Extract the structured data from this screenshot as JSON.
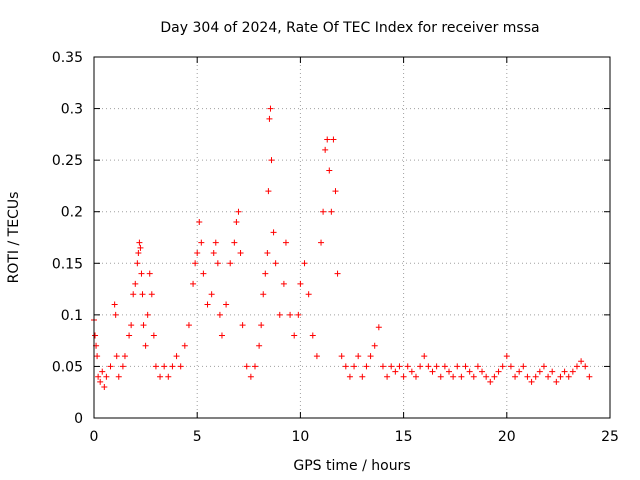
{
  "chart_data": {
    "type": "scatter",
    "title": "Day 304 of 2024, Rate Of TEC Index for receiver mssa",
    "xlabel": "GPS time / hours",
    "ylabel": "ROTI / TECUs",
    "xlim": [
      0,
      25
    ],
    "ylim": [
      0,
      0.35
    ],
    "xticks": [
      0,
      5,
      10,
      15,
      20,
      25
    ],
    "xtick_labels": [
      "0",
      "5",
      "10",
      "15",
      "20",
      "25"
    ],
    "yticks": [
      0,
      0.05,
      0.1,
      0.15,
      0.2,
      0.25,
      0.3,
      0.35
    ],
    "ytick_labels": [
      "0",
      "0.05",
      "0.1",
      "0.15",
      "0.2",
      "0.25",
      "0.3",
      "0.35"
    ],
    "grid": true,
    "marker": "+",
    "color": "#ff0000",
    "series": [
      {
        "name": "ROTI",
        "x": [
          0.0,
          0.05,
          0.1,
          0.15,
          0.2,
          0.3,
          0.4,
          0.5,
          0.6,
          0.8,
          1.0,
          1.05,
          1.1,
          1.2,
          1.4,
          1.5,
          1.7,
          1.8,
          1.9,
          2.0,
          2.1,
          2.15,
          2.2,
          2.25,
          2.3,
          2.35,
          2.4,
          2.5,
          2.6,
          2.7,
          2.8,
          2.9,
          3.0,
          3.2,
          3.4,
          3.6,
          3.8,
          4.0,
          4.2,
          4.4,
          4.6,
          4.8,
          4.9,
          5.0,
          5.1,
          5.2,
          5.3,
          5.5,
          5.7,
          5.8,
          5.9,
          6.0,
          6.1,
          6.2,
          6.4,
          6.6,
          6.8,
          6.9,
          7.0,
          7.1,
          7.2,
          7.4,
          7.6,
          7.8,
          8.0,
          8.1,
          8.2,
          8.3,
          8.4,
          8.45,
          8.5,
          8.55,
          8.6,
          8.7,
          8.8,
          9.0,
          9.2,
          9.3,
          9.5,
          9.7,
          9.9,
          10.0,
          10.2,
          10.4,
          10.6,
          10.8,
          11.0,
          11.1,
          11.2,
          11.3,
          11.4,
          11.5,
          11.6,
          11.7,
          11.8,
          12.0,
          12.2,
          12.4,
          12.6,
          12.8,
          13.0,
          13.2,
          13.4,
          13.6,
          13.8,
          14.0,
          14.2,
          14.4,
          14.6,
          14.8,
          15.0,
          15.2,
          15.4,
          15.6,
          15.8,
          16.0,
          16.2,
          16.4,
          16.6,
          16.8,
          17.0,
          17.2,
          17.4,
          17.6,
          17.8,
          18.0,
          18.2,
          18.4,
          18.6,
          18.8,
          19.0,
          19.2,
          19.4,
          19.6,
          19.8,
          20.0,
          20.2,
          20.4,
          20.6,
          20.8,
          21.0,
          21.2,
          21.4,
          21.6,
          21.8,
          22.0,
          22.2,
          22.4,
          22.6,
          22.8,
          23.0,
          23.2,
          23.4,
          23.6,
          23.8,
          24.0
        ],
        "y": [
          0.095,
          0.08,
          0.07,
          0.06,
          0.04,
          0.035,
          0.045,
          0.03,
          0.04,
          0.05,
          0.11,
          0.1,
          0.06,
          0.04,
          0.05,
          0.06,
          0.08,
          0.09,
          0.12,
          0.13,
          0.15,
          0.16,
          0.17,
          0.165,
          0.14,
          0.12,
          0.09,
          0.07,
          0.1,
          0.14,
          0.12,
          0.08,
          0.05,
          0.04,
          0.05,
          0.04,
          0.05,
          0.06,
          0.05,
          0.07,
          0.09,
          0.13,
          0.15,
          0.16,
          0.19,
          0.17,
          0.14,
          0.11,
          0.12,
          0.16,
          0.17,
          0.15,
          0.1,
          0.08,
          0.11,
          0.15,
          0.17,
          0.19,
          0.2,
          0.16,
          0.09,
          0.05,
          0.04,
          0.05,
          0.07,
          0.09,
          0.12,
          0.14,
          0.16,
          0.22,
          0.29,
          0.3,
          0.25,
          0.18,
          0.15,
          0.1,
          0.13,
          0.17,
          0.1,
          0.08,
          0.1,
          0.13,
          0.15,
          0.12,
          0.08,
          0.06,
          0.17,
          0.2,
          0.26,
          0.27,
          0.24,
          0.2,
          0.27,
          0.22,
          0.14,
          0.06,
          0.05,
          0.04,
          0.05,
          0.06,
          0.04,
          0.05,
          0.06,
          0.07,
          0.088,
          0.05,
          0.04,
          0.05,
          0.045,
          0.05,
          0.04,
          0.05,
          0.045,
          0.04,
          0.05,
          0.06,
          0.05,
          0.045,
          0.05,
          0.04,
          0.05,
          0.045,
          0.04,
          0.05,
          0.04,
          0.05,
          0.045,
          0.04,
          0.05,
          0.045,
          0.04,
          0.035,
          0.04,
          0.045,
          0.05,
          0.06,
          0.05,
          0.04,
          0.045,
          0.05,
          0.04,
          0.035,
          0.04,
          0.045,
          0.05,
          0.04,
          0.045,
          0.035,
          0.04,
          0.045,
          0.04,
          0.045,
          0.05,
          0.055,
          0.05,
          0.04
        ]
      }
    ]
  }
}
